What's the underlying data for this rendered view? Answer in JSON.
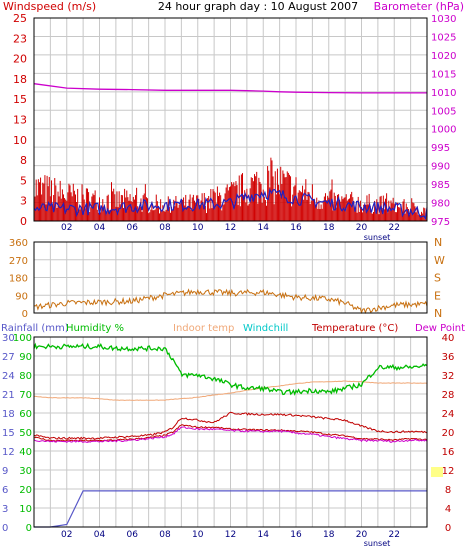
{
  "title": "24 hour graph day : 10 August 2007",
  "colors": {
    "wind": "#d00000",
    "gust": "#2020c0",
    "baro": "#cc00cc",
    "dir": "#c87010",
    "rain": "#5858c8",
    "hum": "#00bb00",
    "indoor": "#f0a878",
    "chill": "#00c8c8",
    "temp": "#c00000",
    "dew": "#cc00cc",
    "grid": "#c8c8c8",
    "frame": "#000000"
  },
  "top_panel": {
    "left_label": "Windspeed (m/s)",
    "right_label": "Barometer (hPa)",
    "left_ticks": [
      "25",
      "23",
      "20",
      "18",
      "15",
      "13",
      "10",
      "8",
      "5",
      "3",
      "0"
    ],
    "right_ticks": [
      "1030",
      "1025",
      "1020",
      "1015",
      "1010",
      "1005",
      "1000",
      "995",
      "990",
      "985",
      "980",
      "975"
    ],
    "x_ticks": [
      "02",
      "04",
      "06",
      "08",
      "10",
      "12",
      "14",
      "16",
      "18",
      "20",
      "22"
    ],
    "sunset_label": "sunset"
  },
  "mid_panel": {
    "left_ticks": [
      "360",
      "270",
      "180",
      "90",
      "0"
    ],
    "right_ticks": [
      "N",
      "W",
      "S",
      "E",
      "N"
    ]
  },
  "bottom_panel": {
    "labels": {
      "rainfall": "Rainfall (mm)",
      "humidity": "Humidity %",
      "indoor": "Indoor temp",
      "windchill": "Windchill",
      "temperature": "Temperature (°C)",
      "dewpoint": "Dew Point"
    },
    "rain_ticks": [
      "30",
      "27",
      "24",
      "21",
      "18",
      "15",
      "12",
      "9",
      "6",
      "3",
      "0"
    ],
    "hum_ticks": [
      "100",
      "90",
      "80",
      "70",
      "60",
      "50",
      "40",
      "30",
      "20",
      "10",
      "0"
    ],
    "temp_ticks": [
      "40",
      "36",
      "32",
      "28",
      "24",
      "20",
      "16",
      "12",
      "8",
      "4",
      "0"
    ],
    "x_ticks": [
      "02",
      "04",
      "06",
      "08",
      "10",
      "12",
      "14",
      "16",
      "18",
      "20",
      "22"
    ],
    "sunset_label": "sunset"
  },
  "chart_data": [
    {
      "type": "line",
      "title": "24 hour graph day : 10 August 2007",
      "xlabel": "",
      "ylabel": "Windspeed (m/s)",
      "ylabel_right": "Barometer (hPa)",
      "xlim": [
        0,
        24
      ],
      "ylim": [
        0,
        25
      ],
      "ylim_right": [
        975,
        1030
      ],
      "x": [
        0,
        2,
        4,
        6,
        8,
        10,
        12,
        13,
        14,
        15,
        16,
        18,
        20,
        22,
        24
      ],
      "series": [
        {
          "name": "Windspeed (m/s)",
          "axis": "left",
          "values": [
            1.5,
            1.5,
            1.5,
            1.8,
            2.0,
            2.0,
            2.2,
            3.0,
            3.5,
            3.2,
            2.8,
            2.2,
            1.8,
            1.5,
            1.0
          ]
        },
        {
          "name": "Gust",
          "axis": "left",
          "values": [
            6.5,
            5,
            4,
            4,
            3,
            3.5,
            5,
            6.5,
            7.5,
            7.5,
            6,
            4,
            3.5,
            3,
            2
          ]
        },
        {
          "name": "Barometer (hPa)",
          "axis": "right",
          "values": [
            1012.2,
            1011.0,
            1010.7,
            1010.6,
            1010.4,
            1010.4,
            1010.4,
            1010.3,
            1010.2,
            1010.0,
            1009.9,
            1009.8,
            1009.7,
            1009.7,
            1009.7
          ]
        }
      ]
    },
    {
      "type": "line",
      "title": "",
      "xlabel": "",
      "ylabel": "",
      "xlim": [
        0,
        24
      ],
      "ylim": [
        0,
        360
      ],
      "x": [
        0,
        2,
        4,
        6,
        8,
        9,
        10,
        12,
        14,
        16,
        18,
        19,
        20,
        21,
        22,
        24
      ],
      "series": [
        {
          "name": "Wind direction",
          "values": [
            30,
            50,
            55,
            60,
            90,
            100,
            110,
            100,
            105,
            80,
            70,
            50,
            10,
            25,
            40,
            45
          ]
        }
      ]
    },
    {
      "type": "line",
      "title": "",
      "xlabel": "",
      "xlim": [
        0,
        24
      ],
      "ylim_humidity": [
        0,
        100
      ],
      "ylim_temp": [
        0,
        40
      ],
      "ylim_rain": [
        0,
        30
      ],
      "x": [
        0,
        1,
        2,
        3,
        4,
        5,
        6,
        7,
        8,
        8.5,
        9,
        10,
        11,
        12,
        13,
        14,
        15,
        16,
        17,
        18,
        19,
        20,
        21,
        22,
        23,
        24
      ],
      "series": [
        {
          "name": "Humidity %",
          "axis": "humidity",
          "values": [
            95,
            95,
            95,
            95,
            95,
            94,
            94,
            94,
            94,
            88,
            80,
            80,
            78,
            75,
            73,
            73,
            71,
            71,
            72,
            71,
            73,
            75,
            84,
            84,
            84,
            85
          ]
        },
        {
          "name": "Indoor temp",
          "axis": "temp",
          "values": [
            27.5,
            27.2,
            27.2,
            27.2,
            27.0,
            26.7,
            26.7,
            26.7,
            26.7,
            26.9,
            27.0,
            27.3,
            27.8,
            28.2,
            28.8,
            29.3,
            29.7,
            30.2,
            30.5,
            30.6,
            30.7,
            30.6,
            30.3,
            30.3,
            30.3,
            30.3
          ]
        },
        {
          "name": "Temperature (°C)",
          "axis": "temp",
          "values": [
            19.3,
            18.7,
            18.7,
            18.7,
            18.7,
            18.9,
            19.1,
            19.3,
            20.0,
            21.0,
            23.0,
            22.5,
            22.0,
            24.0,
            23.8,
            23.7,
            23.7,
            23.5,
            23.2,
            22.8,
            22.5,
            21.2,
            20.2,
            20.0,
            20.1,
            20.0
          ]
        },
        {
          "name": "Windchill",
          "axis": "temp",
          "values": [
            18.9,
            18.2,
            18.2,
            18.2,
            18.2,
            18.3,
            18.5,
            18.8,
            19.3,
            20.0,
            21.5,
            21.0,
            21.0,
            20.6,
            20.5,
            20.4,
            20.4,
            20.2,
            20.0,
            19.5,
            19.2,
            18.6,
            18.5,
            18.3,
            18.6,
            18.4
          ]
        },
        {
          "name": "Dew Point",
          "axis": "temp",
          "values": [
            18.3,
            18.0,
            18.0,
            18.0,
            18.0,
            18.1,
            18.3,
            18.6,
            19.0,
            19.6,
            21.0,
            20.6,
            20.6,
            20.3,
            20.2,
            20.1,
            20.2,
            19.8,
            19.5,
            19.0,
            18.6,
            18.2,
            18.2,
            18.0,
            18.3,
            18.2
          ]
        },
        {
          "name": "Rainfall (mm)",
          "axis": "rain",
          "values": [
            0,
            0,
            0.4,
            5.7,
            5.7,
            5.7,
            5.7,
            5.7,
            5.7,
            5.7,
            5.7,
            5.7,
            5.7,
            5.7,
            5.7,
            5.7,
            5.7,
            5.7,
            5.7,
            5.7,
            5.7,
            5.7,
            5.7,
            5.7,
            5.7,
            5.7
          ]
        }
      ]
    }
  ]
}
